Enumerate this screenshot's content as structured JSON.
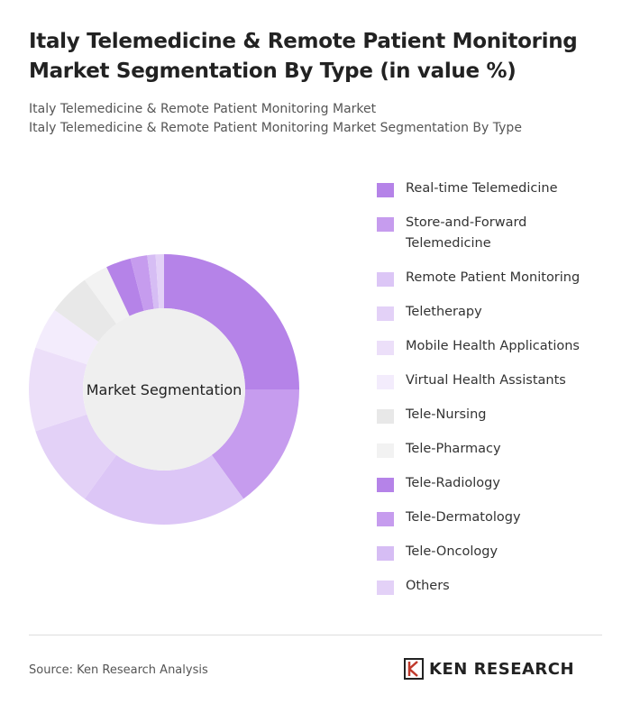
{
  "chart_data": {
    "type": "donut",
    "title": "Italy Telemedicine & Remote Patient Monitoring Market Segmentation By Type (in value %)",
    "subtitles": [
      "Italy Telemedicine & Remote Patient Monitoring Market",
      "Italy Telemedicine & Remote Patient Monitoring Market Segmentation By Type"
    ],
    "center_label": "Market Segmentation",
    "categories": [
      "Real-time Telemedicine",
      "Store-and-Forward Telemedicine",
      "Remote Patient Monitoring",
      "Teletherapy",
      "Mobile Health Applications",
      "Virtual Health Assistants",
      "Tele-Nursing",
      "Tele-Pharmacy",
      "Tele-Radiology",
      "Tele-Dermatology",
      "Tele-Oncology",
      "Others"
    ],
    "values": [
      25,
      15,
      20,
      10,
      10,
      5,
      5,
      3,
      3,
      2,
      1,
      1
    ],
    "colors": [
      "#b583e8",
      "#c69cee",
      "#dcc6f6",
      "#e3d1f7",
      "#ecdff9",
      "#f3ecfc",
      "#e8e8e8",
      "#f2f2f2",
      "#b583e8",
      "#c69cee",
      "#d6bdf4",
      "#e3d1f7"
    ]
  },
  "footer": {
    "source": "Source: Ken Research Analysis",
    "logo": "KEN RESEARCH"
  }
}
